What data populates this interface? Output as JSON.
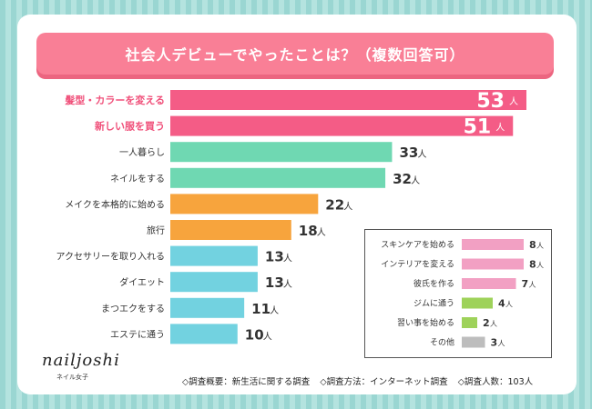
{
  "title": "社会人デビューでやったことは？（複数回答可）",
  "unit": "人",
  "chart_data": {
    "type": "bar",
    "orientation": "horizontal",
    "title": "社会人デビューでやったことは？（複数回答可）",
    "xlabel": "",
    "ylabel": "",
    "xlim": [
      0,
      53
    ],
    "categories": [
      "髪型・カラーを変える",
      "新しい服を買う",
      "一人暮らし",
      "ネイルをする",
      "メイクを本格的に始める",
      "旅行",
      "アクセサリーを取り入れる",
      "ダイエット",
      "まつエクをする",
      "エステに通う"
    ],
    "values": [
      53,
      51,
      33,
      32,
      22,
      18,
      13,
      13,
      11,
      10
    ],
    "colors": [
      "#f45c86",
      "#f45c86",
      "#6fd8b2",
      "#6fd8b2",
      "#f7a43d",
      "#f7a43d",
      "#72d2e0",
      "#72d2e0",
      "#72d2e0",
      "#72d2e0"
    ],
    "highlight": [
      true,
      true,
      false,
      false,
      false,
      false,
      false,
      false,
      false,
      false
    ],
    "others": {
      "categories": [
        "スキンケアを始める",
        "インテリアを変える",
        "彼氏を作る",
        "ジムに通う",
        "習い事を始める",
        "その他"
      ],
      "values": [
        8,
        8,
        7,
        4,
        2,
        3
      ],
      "colors": [
        "#f2a0c3",
        "#f2a0c3",
        "#f2a0c3",
        "#9ed25a",
        "#9ed25a",
        "#bdbdbd"
      ]
    }
  },
  "logo": {
    "name": "nailjoshi",
    "sub": "ネイル女子"
  },
  "footer": {
    "survey_summary": "◇調査概要：新生活に関する調査",
    "survey_method": "◇調査方法：インターネット調査",
    "survey_count": "◇調査人数：103人"
  }
}
